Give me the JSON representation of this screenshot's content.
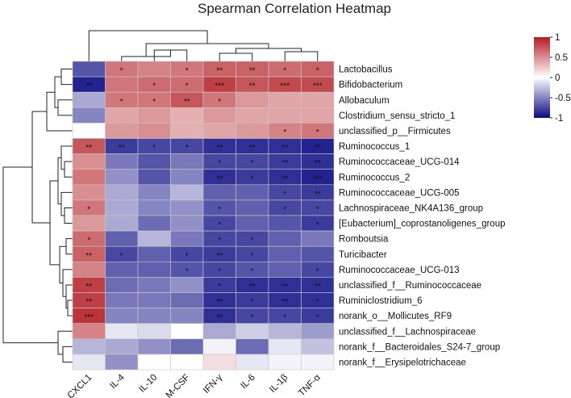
{
  "chart_data": {
    "type": "heatmap",
    "title": "Spearman Correlation Heatmap",
    "columns": [
      "CXCL1",
      "IL-4",
      "IL-10",
      "M-CSF",
      "IFN-γ",
      "IL-6",
      "IL-1β",
      "TNF-α"
    ],
    "rows": [
      "Lactobacillus",
      "Bifidobacterium",
      "Allobaculum",
      "Clostridium_sensu_stricto_1",
      "unclassified_p__Firmicutes",
      "Ruminococcus_1",
      "Ruminococcaceae_UCG-014",
      "Ruminococcus_2",
      "Ruminococcaceae_UCG-005",
      "Lachnospiraceae_NK4A136_group",
      "[Eubacterium]_coprostanoligenes_group",
      "Romboutsia",
      "Turicibacter",
      "Ruminococcaceae_UCG-013",
      "unclassified_f__Ruminococcaceae",
      "Ruminiclostridium_6",
      "norank_o__Mollicutes_RF9",
      "unclassified_f__Lachnospiraceae",
      "norank_f__Bacteroidales_S24-7_group",
      "norank_f__Erysipelotrichaceae"
    ],
    "values": [
      [
        -0.7,
        0.6,
        0.55,
        0.6,
        0.7,
        0.7,
        0.65,
        0.7
      ],
      [
        -0.9,
        0.6,
        0.65,
        0.65,
        0.85,
        0.75,
        0.8,
        0.8
      ],
      [
        -0.35,
        0.6,
        0.6,
        0.75,
        0.6,
        0.45,
        0.4,
        0.4
      ],
      [
        -0.5,
        0.4,
        0.45,
        0.35,
        0.45,
        0.4,
        0.4,
        0.4
      ],
      [
        0.0,
        0.45,
        0.5,
        0.35,
        0.4,
        0.45,
        0.55,
        0.6
      ],
      [
        0.75,
        -0.8,
        -0.75,
        -0.75,
        -0.85,
        -0.85,
        -0.85,
        -0.9
      ],
      [
        0.5,
        -0.55,
        -0.7,
        -0.55,
        -0.75,
        -0.75,
        -0.8,
        -0.85
      ],
      [
        0.6,
        -0.45,
        -0.7,
        -0.5,
        -0.85,
        -0.8,
        -0.85,
        -0.9
      ],
      [
        0.5,
        -0.35,
        -0.5,
        -0.3,
        -0.65,
        -0.65,
        -0.75,
        -0.8
      ],
      [
        0.6,
        -0.35,
        -0.5,
        -0.45,
        -0.7,
        -0.65,
        -0.75,
        -0.75
      ],
      [
        0.45,
        -0.35,
        -0.6,
        -0.45,
        -0.75,
        -0.65,
        -0.7,
        -0.8
      ],
      [
        0.65,
        -0.65,
        -0.3,
        -0.55,
        -0.75,
        -0.75,
        -0.65,
        -0.55
      ],
      [
        0.7,
        -0.75,
        -0.65,
        -0.75,
        -0.8,
        -0.75,
        -0.65,
        -0.7
      ],
      [
        0.55,
        -0.65,
        -0.65,
        -0.7,
        -0.75,
        -0.7,
        -0.65,
        -0.75
      ],
      [
        0.85,
        -0.6,
        -0.55,
        -0.45,
        -0.8,
        -0.85,
        -0.85,
        -0.85
      ],
      [
        0.85,
        -0.55,
        -0.55,
        -0.6,
        -0.85,
        -0.8,
        -0.85,
        -0.85
      ],
      [
        0.9,
        -0.5,
        -0.5,
        -0.5,
        -0.85,
        -0.75,
        -0.75,
        -0.8
      ],
      [
        0.55,
        -0.1,
        -0.15,
        0.0,
        -0.35,
        -0.2,
        -0.3,
        -0.4
      ],
      [
        -0.3,
        -0.35,
        -0.45,
        -0.6,
        -0.05,
        -0.6,
        -0.1,
        -0.25
      ],
      [
        -0.1,
        -0.45,
        0.0,
        0.0,
        0.15,
        -0.1,
        -0.05,
        -0.05
      ]
    ],
    "significance": [
      [
        "",
        "*",
        "",
        "*",
        "**",
        "**",
        "*",
        "*"
      ],
      [
        "**",
        "",
        "*",
        "*",
        "***",
        "**",
        "***",
        "***"
      ],
      [
        "",
        "*",
        "*",
        "**",
        "*",
        "",
        "",
        ""
      ],
      [
        "",
        "",
        "",
        "",
        "",
        "",
        "",
        ""
      ],
      [
        "",
        "",
        "",
        "",
        "",
        "",
        "*",
        "*"
      ],
      [
        "**",
        "**",
        "*",
        "*",
        "**",
        "**",
        "**",
        "**"
      ],
      [
        "",
        "",
        "",
        "",
        "*",
        "*",
        "**",
        "**"
      ],
      [
        "",
        "",
        "",
        "",
        "**",
        "*",
        "**",
        "***"
      ],
      [
        "",
        "",
        "",
        "",
        "",
        "",
        "*",
        "**"
      ],
      [
        "*",
        "",
        "",
        "",
        "*",
        "",
        "*",
        "*"
      ],
      [
        "",
        "",
        "",
        "",
        "*",
        "",
        "",
        "*"
      ],
      [
        "*",
        "",
        "",
        "",
        "*",
        "*",
        "",
        ""
      ],
      [
        "**",
        "*",
        "",
        "*",
        "**",
        "*",
        "",
        ""
      ],
      [
        "",
        "",
        "",
        "*",
        "*",
        "*",
        "",
        "*"
      ],
      [
        "**",
        "",
        "",
        "",
        "*",
        "**",
        "**",
        "**"
      ],
      [
        "**",
        "",
        "",
        "",
        "**",
        "*",
        "**",
        "*"
      ],
      [
        "***",
        "",
        "",
        "",
        "**",
        "*",
        "*",
        "*"
      ],
      [
        "",
        "",
        "",
        "",
        "",
        "",
        "",
        ""
      ],
      [
        "",
        "",
        "",
        "",
        "",
        "",
        "",
        ""
      ],
      [
        "",
        "",
        "",
        "",
        "",
        "",
        "",
        ""
      ]
    ],
    "color_range": [
      -1,
      1
    ],
    "colormap": {
      "low": "#0a0a82",
      "mid": "#ffffff",
      "high": "#b21d23"
    },
    "legend": {
      "ticks": [
        1,
        0.5,
        0,
        -0.5,
        -1
      ],
      "tick_labels": [
        "1",
        "0.5",
        "0",
        "-0.5",
        "-1"
      ],
      "placement": "top-right"
    }
  }
}
